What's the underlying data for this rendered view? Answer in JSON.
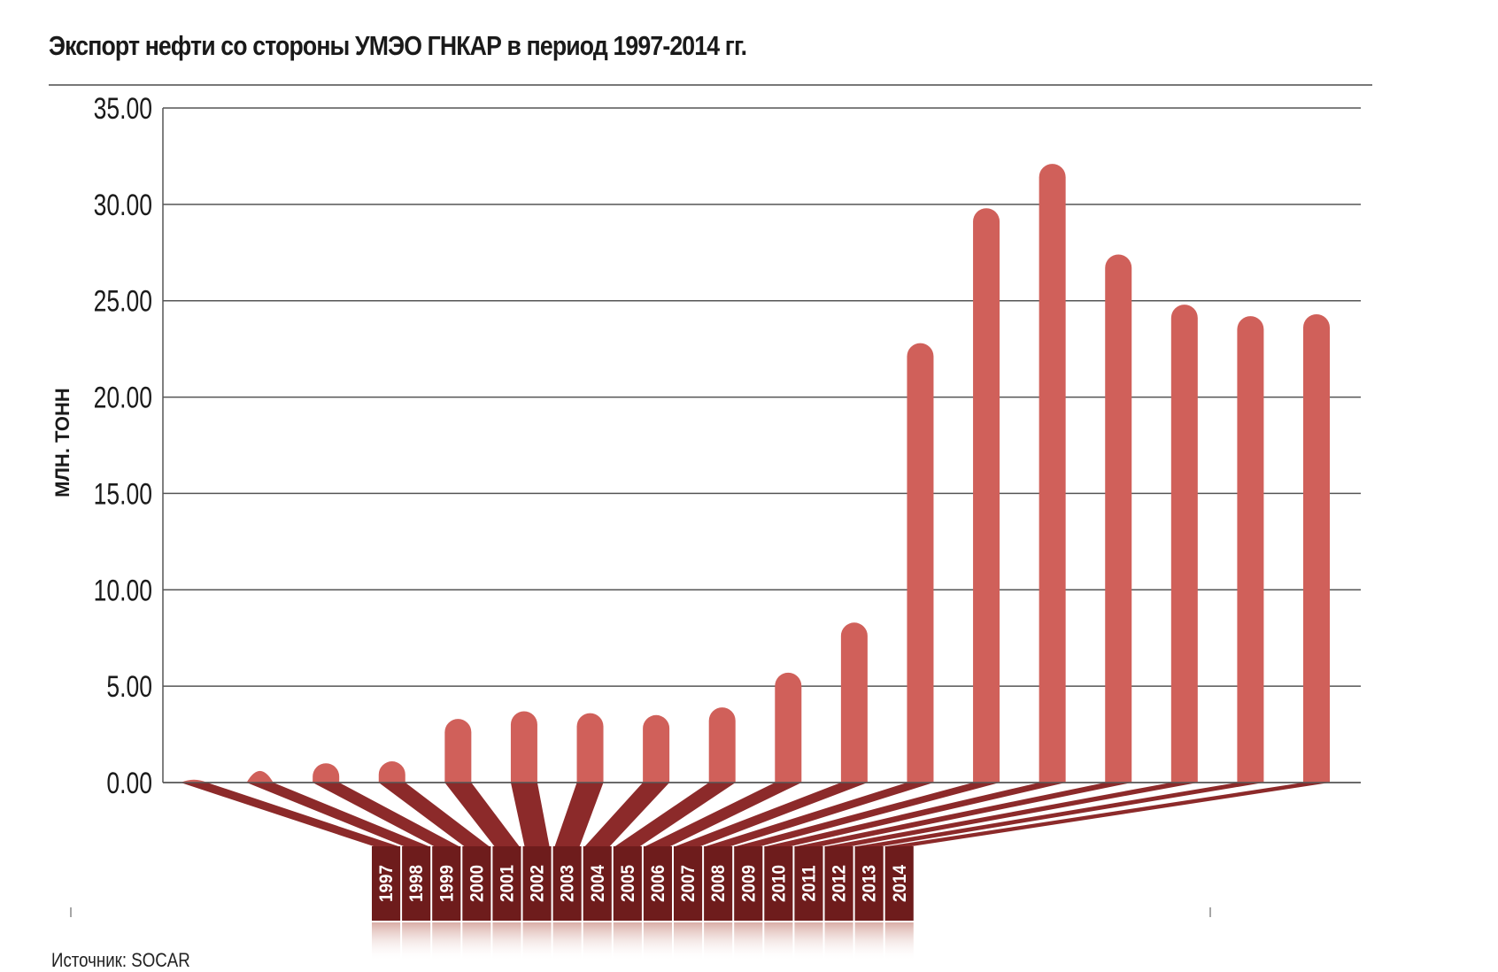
{
  "chart_data": {
    "type": "bar",
    "title": "Экспорт нефти со стороны УМЭО ГНКАР в период 1997-2014 гг.",
    "xlabel": "",
    "ylabel": "МЛН. ТОНН",
    "ylim": [
      0,
      35
    ],
    "yticks": [
      "0.00",
      "5.00",
      "10.00",
      "15.00",
      "20.00",
      "25.00",
      "30.00",
      "35.00"
    ],
    "grid": true,
    "categories": [
      "1997",
      "1998",
      "1999",
      "2000",
      "2001",
      "2002",
      "2003",
      "2004",
      "2005",
      "2006",
      "2007",
      "2008",
      "2009",
      "2010",
      "2011",
      "2012",
      "2013",
      "2014"
    ],
    "values": [
      0.15,
      0.6,
      1.0,
      1.1,
      3.3,
      3.7,
      3.6,
      3.5,
      3.9,
      5.7,
      8.3,
      22.8,
      29.8,
      32.1,
      27.4,
      24.8,
      24.2,
      24.3
    ],
    "source": "Источник: SOCAR"
  },
  "colors": {
    "bar": "#d0605a",
    "connector": "#8c2a2a",
    "label_box": "#6e1c1c",
    "grid": "#555555"
  }
}
